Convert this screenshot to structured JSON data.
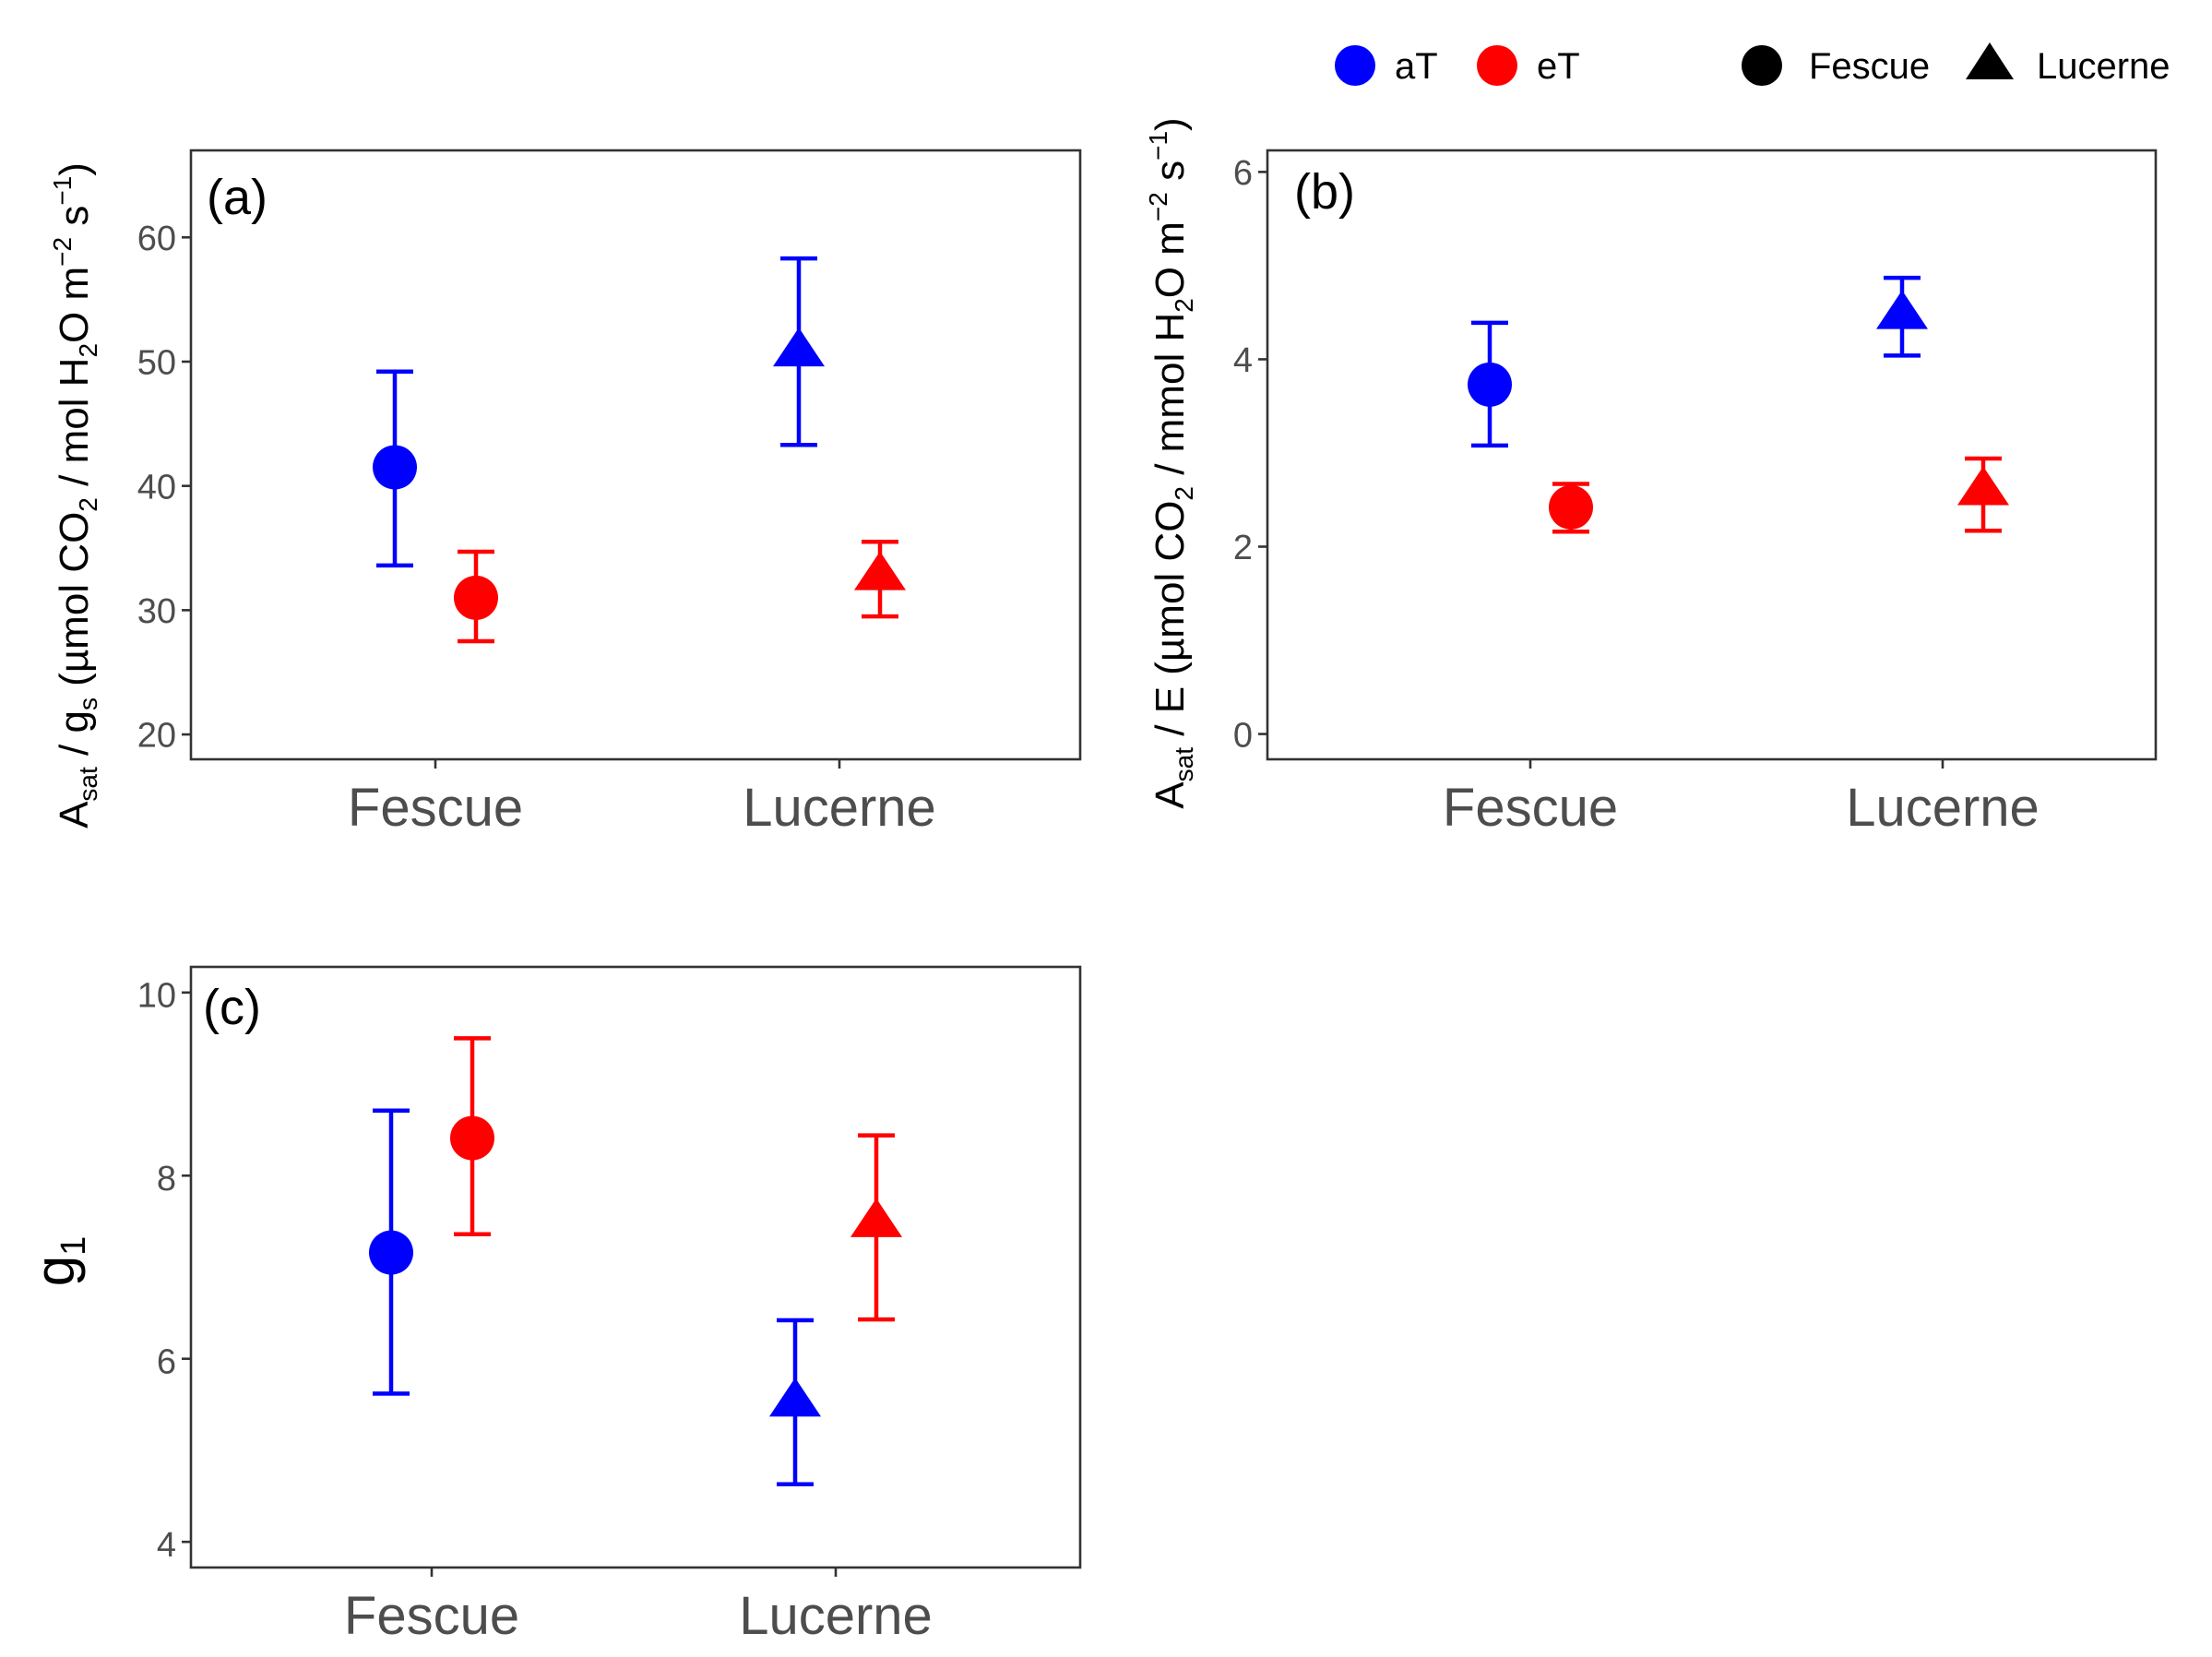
{
  "colors": {
    "aT": "#0000ff",
    "eT": "#ff0000",
    "shape_key": "#000000"
  },
  "legend": {
    "temperature": [
      {
        "name": "aT",
        "color": "#0000ff",
        "shape": "circle"
      },
      {
        "name": "eT",
        "color": "#ff0000",
        "shape": "circle"
      }
    ],
    "species": [
      {
        "name": "Fescue",
        "color": "#000000",
        "shape": "circle"
      },
      {
        "name": "Lucerne",
        "color": "#000000",
        "shape": "triangle"
      }
    ]
  },
  "chart_data": [
    {
      "type": "scatter",
      "panel": "(a)",
      "ylabel": {
        "base": "A",
        "sub1": "sat",
        "mid": " / g",
        "sub2": "s",
        "rest": " (µmol CO",
        "sub3": "2",
        "rest2": " / mol H",
        "sub4": "2",
        "rest3": "O m",
        "sup1": "−2",
        "rest4": " s",
        "sup2": "−1",
        "end": ")"
      },
      "categories": [
        "Fescue",
        "Lucerne"
      ],
      "ylim": [
        18,
        67
      ],
      "yticks": [
        20,
        30,
        40,
        50,
        60
      ],
      "grid": false,
      "series": [
        {
          "name": "aT",
          "color": "#0000ff",
          "points": [
            {
              "category": "Fescue",
              "shape": "circle",
              "value": 41.5,
              "lower": 33.6,
              "upper": 49.2
            },
            {
              "category": "Lucerne",
              "shape": "triangle",
              "value": 50.8,
              "lower": 43.3,
              "upper": 58.3
            }
          ]
        },
        {
          "name": "eT",
          "color": "#ff0000",
          "points": [
            {
              "category": "Fescue",
              "shape": "circle",
              "value": 31.0,
              "lower": 27.5,
              "upper": 34.7
            },
            {
              "category": "Lucerne",
              "shape": "triangle",
              "value": 32.8,
              "lower": 29.5,
              "upper": 35.5
            }
          ]
        }
      ]
    },
    {
      "type": "scatter",
      "panel": "(b)",
      "ylabel": {
        "base": "A",
        "sub1": "sat",
        "mid": " / E",
        "rest": " (µmol CO",
        "sub3": "2",
        "rest2": " / mmol H",
        "sub4": "2",
        "rest3": "O m",
        "sup1": "−2",
        "rest4": " s",
        "sup2": "−1",
        "end": ")"
      },
      "categories": [
        "Fescue",
        "Lucerne"
      ],
      "ylim": [
        -0.27,
        6.23
      ],
      "yticks": [
        0,
        2,
        4,
        6
      ],
      "grid": false,
      "series": [
        {
          "name": "aT",
          "color": "#0000ff",
          "points": [
            {
              "category": "Fescue",
              "shape": "circle",
              "value": 3.73,
              "lower": 3.08,
              "upper": 4.39
            },
            {
              "category": "Lucerne",
              "shape": "triangle",
              "value": 4.48,
              "lower": 4.04,
              "upper": 4.87
            }
          ]
        },
        {
          "name": "eT",
          "color": "#ff0000",
          "points": [
            {
              "category": "Fescue",
              "shape": "circle",
              "value": 2.42,
              "lower": 2.16,
              "upper": 2.67
            },
            {
              "category": "Lucerne",
              "shape": "triangle",
              "value": 2.6,
              "lower": 2.17,
              "upper": 2.94
            }
          ]
        }
      ]
    },
    {
      "type": "scatter",
      "panel": "(c)",
      "ylabel": {
        "base": "g",
        "sub1": "1"
      },
      "categories": [
        "Fescue",
        "Lucerne"
      ],
      "ylim": [
        3.72,
        10.28
      ],
      "yticks": [
        4,
        6,
        8,
        10
      ],
      "grid": false,
      "series": [
        {
          "name": "aT",
          "color": "#0000ff",
          "points": [
            {
              "category": "Fescue",
              "shape": "circle",
              "value": 7.16,
              "lower": 5.62,
              "upper": 8.71
            },
            {
              "category": "Lucerne",
              "shape": "triangle",
              "value": 5.53,
              "lower": 4.63,
              "upper": 6.42
            }
          ]
        },
        {
          "name": "eT",
          "color": "#ff0000",
          "points": [
            {
              "category": "Fescue",
              "shape": "circle",
              "value": 8.41,
              "lower": 7.36,
              "upper": 9.5
            },
            {
              "category": "Lucerne",
              "shape": "triangle",
              "value": 7.49,
              "lower": 6.43,
              "upper": 8.44
            }
          ]
        }
      ]
    }
  ]
}
